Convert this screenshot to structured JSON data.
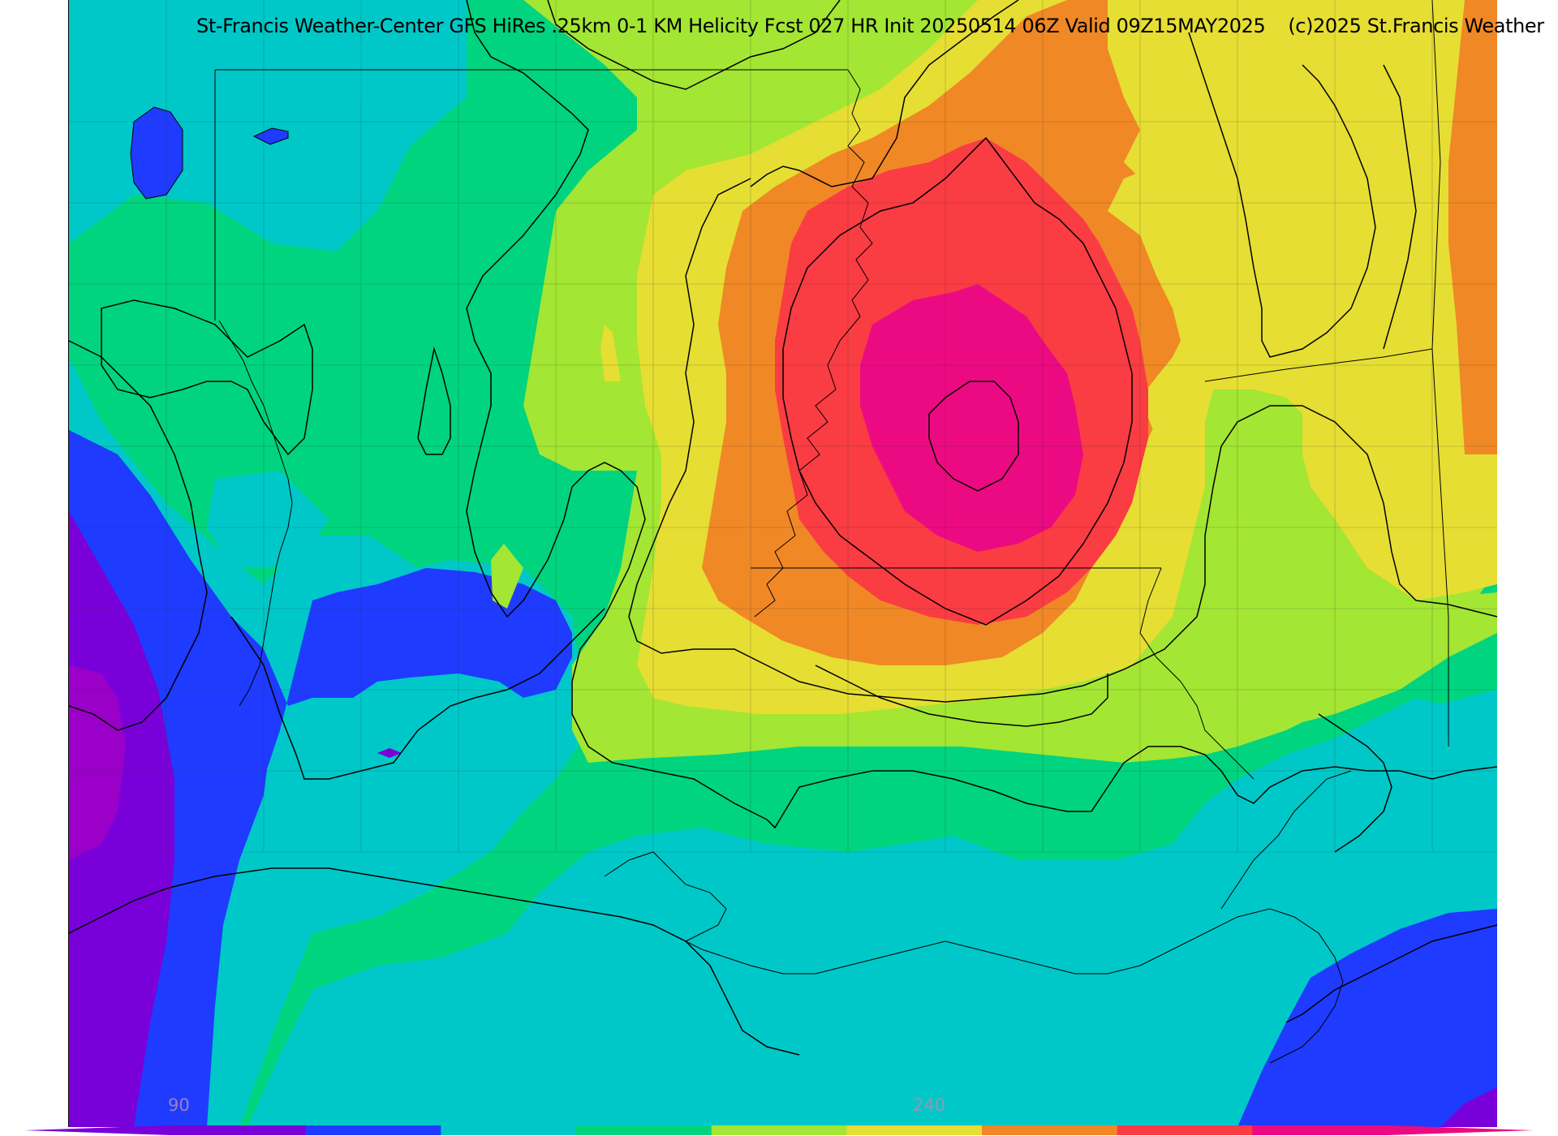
{
  "title": {
    "main": "St-Francis Weather-Center GFS HiRes .25km 0-1 KM Helicity Fcst 027 HR Init 20250514 06Z  Valid 09Z15MAY2025",
    "copyright": "(c)2025 St.Francis Weather"
  },
  "legend": {
    "tick_labels": [
      "90",
      "240"
    ],
    "colors": [
      "#7a00d9",
      "#1f3bff",
      "#00c8c8",
      "#00d47f",
      "#a3e633",
      "#e6de33",
      "#f08826",
      "#fa3c43",
      "#ec0a82"
    ]
  },
  "field": {
    "name": "0-1 KM Helicity",
    "palette": {
      "violet": "#7a00d9",
      "blue": "#1f3bff",
      "cyan": "#00c8c8",
      "green": "#00d47f",
      "lime": "#a3e633",
      "yellow": "#e6de33",
      "orange": "#f08826",
      "red": "#fa3c43",
      "magenta": "#ec0a82",
      "purple": "#9a00c8"
    }
  }
}
